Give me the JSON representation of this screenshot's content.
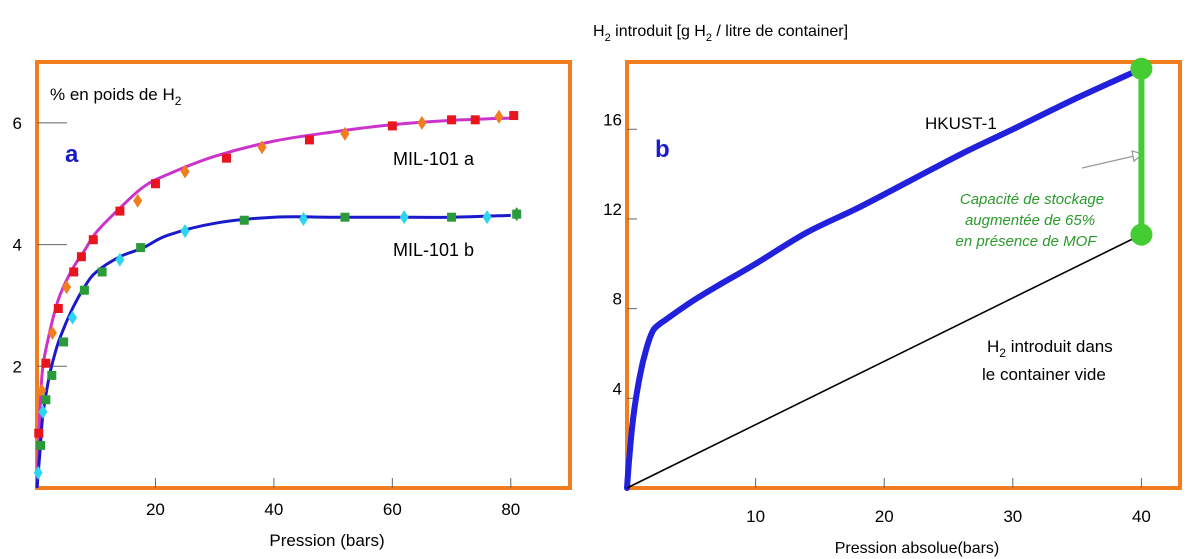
{
  "chart_data": [
    {
      "type": "scatter",
      "panel_label": "a",
      "ylabel_prefix": "% en poids de H",
      "ylabel_sub": "2",
      "xlabel": "Pression (bars)",
      "xlim": [
        0,
        90
      ],
      "ylim": [
        0,
        7
      ],
      "xticks": [
        20,
        40,
        60,
        80
      ],
      "yticks": [
        2,
        4,
        6
      ],
      "series": [
        {
          "name": "MIL-101 a",
          "curve_color": "#cc33cc",
          "x": [
            0,
            0.5,
            1,
            2,
            3,
            4,
            6,
            8,
            10,
            14,
            18,
            22,
            30,
            40,
            50,
            60,
            70,
            80
          ],
          "y": [
            0,
            1.3,
            2.0,
            2.5,
            2.9,
            3.2,
            3.6,
            3.9,
            4.2,
            4.6,
            4.95,
            5.15,
            5.45,
            5.7,
            5.85,
            5.97,
            6.04,
            6.08
          ],
          "markers": [
            {
              "x": 0.3,
              "y": 0.9,
              "m": "s",
              "c": "#e8141e"
            },
            {
              "x": 0.8,
              "y": 1.6,
              "m": "d",
              "c": "#f07d1e"
            },
            {
              "x": 1.5,
              "y": 2.05,
              "m": "s",
              "c": "#e8141e"
            },
            {
              "x": 2.6,
              "y": 2.55,
              "m": "d",
              "c": "#f07d1e"
            },
            {
              "x": 3.6,
              "y": 2.95,
              "m": "s",
              "c": "#e8141e"
            },
            {
              "x": 5.0,
              "y": 3.3,
              "m": "d",
              "c": "#f07d1e"
            },
            {
              "x": 6.2,
              "y": 3.55,
              "m": "s",
              "c": "#e8141e"
            },
            {
              "x": 7.5,
              "y": 3.8,
              "m": "s",
              "c": "#e8141e"
            },
            {
              "x": 9.5,
              "y": 4.08,
              "m": "s",
              "c": "#e8141e"
            },
            {
              "x": 14,
              "y": 4.55,
              "m": "s",
              "c": "#e8141e"
            },
            {
              "x": 17,
              "y": 4.72,
              "m": "d",
              "c": "#f07d1e"
            },
            {
              "x": 20,
              "y": 5.0,
              "m": "s",
              "c": "#e8141e"
            },
            {
              "x": 25,
              "y": 5.2,
              "m": "d",
              "c": "#f07d1e"
            },
            {
              "x": 32,
              "y": 5.42,
              "m": "s",
              "c": "#e8141e"
            },
            {
              "x": 38,
              "y": 5.6,
              "m": "d",
              "c": "#f07d1e"
            },
            {
              "x": 46,
              "y": 5.72,
              "m": "s",
              "c": "#e8141e"
            },
            {
              "x": 52,
              "y": 5.82,
              "m": "d",
              "c": "#f07d1e"
            },
            {
              "x": 60,
              "y": 5.95,
              "m": "s",
              "c": "#e8141e"
            },
            {
              "x": 65,
              "y": 6.0,
              "m": "d",
              "c": "#f07d1e"
            },
            {
              "x": 70,
              "y": 6.05,
              "m": "s",
              "c": "#e8141e"
            },
            {
              "x": 74,
              "y": 6.05,
              "m": "s",
              "c": "#e8141e"
            },
            {
              "x": 78,
              "y": 6.1,
              "m": "d",
              "c": "#f07d1e"
            },
            {
              "x": 80.5,
              "y": 6.12,
              "m": "s",
              "c": "#e8141e"
            }
          ]
        },
        {
          "name": "MIL-101 b",
          "curve_color": "#1a1acc",
          "x": [
            0,
            0.5,
            1,
            2,
            3,
            4,
            6,
            8,
            10,
            14,
            18,
            22,
            30,
            40,
            50,
            60,
            70,
            80
          ],
          "y": [
            0,
            0.6,
            1.2,
            1.8,
            2.2,
            2.5,
            2.95,
            3.3,
            3.55,
            3.8,
            3.95,
            4.15,
            4.35,
            4.45,
            4.45,
            4.45,
            4.45,
            4.48
          ],
          "markers": [
            {
              "x": 0.2,
              "y": 0.25,
              "m": "d",
              "c": "#2cd5f0"
            },
            {
              "x": 0.6,
              "y": 0.7,
              "m": "s",
              "c": "#2a9a3a"
            },
            {
              "x": 1.0,
              "y": 1.25,
              "m": "d",
              "c": "#2cd5f0"
            },
            {
              "x": 1.5,
              "y": 1.45,
              "m": "s",
              "c": "#2a9a3a"
            },
            {
              "x": 2.5,
              "y": 1.85,
              "m": "s",
              "c": "#2a9a3a"
            },
            {
              "x": 4.5,
              "y": 2.4,
              "m": "s",
              "c": "#2a9a3a"
            },
            {
              "x": 6.0,
              "y": 2.8,
              "m": "d",
              "c": "#2cd5f0"
            },
            {
              "x": 8.0,
              "y": 3.25,
              "m": "s",
              "c": "#2a9a3a"
            },
            {
              "x": 11,
              "y": 3.55,
              "m": "s",
              "c": "#2a9a3a"
            },
            {
              "x": 14,
              "y": 3.75,
              "m": "d",
              "c": "#2cd5f0"
            },
            {
              "x": 17.5,
              "y": 3.95,
              "m": "s",
              "c": "#2a9a3a"
            },
            {
              "x": 25,
              "y": 4.22,
              "m": "d",
              "c": "#2cd5f0"
            },
            {
              "x": 35,
              "y": 4.4,
              "m": "s",
              "c": "#2a9a3a"
            },
            {
              "x": 45,
              "y": 4.42,
              "m": "d",
              "c": "#2cd5f0"
            },
            {
              "x": 52,
              "y": 4.45,
              "m": "s",
              "c": "#2a9a3a"
            },
            {
              "x": 62,
              "y": 4.45,
              "m": "d",
              "c": "#2cd5f0"
            },
            {
              "x": 70,
              "y": 4.45,
              "m": "s",
              "c": "#2a9a3a"
            },
            {
              "x": 76,
              "y": 4.45,
              "m": "d",
              "c": "#2cd5f0"
            },
            {
              "x": 81,
              "y": 4.5,
              "m": "s",
              "c": "#2a9a3a"
            },
            {
              "x": 81,
              "y": 4.5,
              "m": "d",
              "c": "#2a9a3a"
            }
          ]
        }
      ]
    },
    {
      "type": "line",
      "panel_label": "b",
      "ylabel": "H2 introduit [g H2 / litre de container]",
      "ylabel_parts": [
        "H",
        "2",
        " introduit [g H",
        "2",
        " / litre de container]"
      ],
      "xlabel": "Pression absolue(bars)",
      "xlim": [
        0,
        43
      ],
      "ylim": [
        0,
        19
      ],
      "xticks": [
        10,
        20,
        30,
        40
      ],
      "yticks": [
        4,
        8,
        12,
        16
      ],
      "series": [
        {
          "name": "HKUST-1",
          "color": "#2020dd",
          "x": [
            0,
            0.2,
            0.5,
            1,
            1.5,
            2,
            2.5,
            3,
            5,
            7,
            10,
            14,
            18,
            22,
            26,
            30,
            35,
            40
          ],
          "y": [
            0,
            1.5,
            3.2,
            5.0,
            6.2,
            7.0,
            7.3,
            7.5,
            8.3,
            9.0,
            10.0,
            11.4,
            12.5,
            13.7,
            14.9,
            16.0,
            17.4,
            18.7
          ]
        },
        {
          "name_parts": [
            "H",
            "2",
            " introduit dans",
            "le container vide"
          ],
          "color": "#000000",
          "x": [
            0,
            40
          ],
          "y": [
            0,
            11.3
          ]
        }
      ],
      "endpoints": [
        {
          "x": 40,
          "y": 18.7
        },
        {
          "x": 40,
          "y": 11.3
        }
      ],
      "annotation": {
        "lines": [
          "Capacité de stockage",
          "augmentée de 65%",
          "en présence de MOF"
        ],
        "color": "#2a9a2a"
      },
      "bar_color": "#44cc33"
    }
  ],
  "colors": {
    "frame": "#f07d1e",
    "panel_label": "#1a1acc"
  }
}
